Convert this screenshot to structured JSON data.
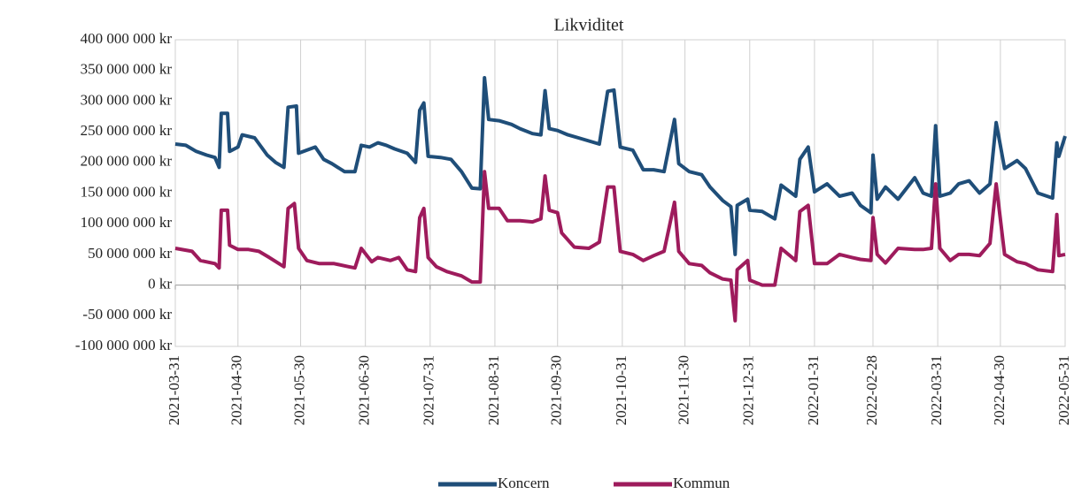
{
  "chart_data": {
    "type": "line",
    "title": "Likviditet",
    "xlim": [
      "2021-03-31",
      "2022-05-31"
    ],
    "xticks": [
      "2021-03-31",
      "2021-04-30",
      "2021-05-30",
      "2021-06-30",
      "2021-07-31",
      "2021-08-31",
      "2021-09-30",
      "2021-10-31",
      "2021-11-30",
      "2021-12-31",
      "2022-01-31",
      "2022-02-28",
      "2022-03-31",
      "2022-04-30",
      "2022-05-31"
    ],
    "ylim": [
      -100000000,
      400000000
    ],
    "yticks": [
      {
        "value": -100000000,
        "label": "-100 000 000 kr"
      },
      {
        "value": -50000000,
        "label": "-50 000 000 kr"
      },
      {
        "value": 0,
        "label": "0 kr"
      },
      {
        "value": 50000000,
        "label": "50 000 000 kr"
      },
      {
        "value": 100000000,
        "label": "100 000 000 kr"
      },
      {
        "value": 150000000,
        "label": "150 000 000 kr"
      },
      {
        "value": 200000000,
        "label": "200 000 000 kr"
      },
      {
        "value": 250000000,
        "label": "250 000 000 kr"
      },
      {
        "value": 300000000,
        "label": "300 000 000 kr"
      },
      {
        "value": 350000000,
        "label": "350 000 000 kr"
      },
      {
        "value": 400000000,
        "label": "400 000 000 kr"
      }
    ],
    "grid": "x",
    "series": [
      {
        "name": "Koncern",
        "color": "#1f4e79",
        "x": [
          "2021-03-31",
          "2021-04-05",
          "2021-04-10",
          "2021-04-15",
          "2021-04-19",
          "2021-04-21",
          "2021-04-22",
          "2021-04-25",
          "2021-04-26",
          "2021-04-30",
          "2021-05-02",
          "2021-05-08",
          "2021-05-14",
          "2021-05-18",
          "2021-05-22",
          "2021-05-24",
          "2021-05-28",
          "2021-05-29",
          "2021-06-02",
          "2021-06-06",
          "2021-06-10",
          "2021-06-14",
          "2021-06-20",
          "2021-06-25",
          "2021-06-28",
          "2021-07-02",
          "2021-07-06",
          "2021-07-10",
          "2021-07-14",
          "2021-07-20",
          "2021-07-24",
          "2021-07-26",
          "2021-07-28",
          "2021-07-30",
          "2021-08-05",
          "2021-08-10",
          "2021-08-15",
          "2021-08-20",
          "2021-08-24",
          "2021-08-26",
          "2021-08-28",
          "2021-09-02",
          "2021-09-08",
          "2021-09-12",
          "2021-09-18",
          "2021-09-22",
          "2021-09-24",
          "2021-09-26",
          "2021-09-30",
          "2021-10-05",
          "2021-10-10",
          "2021-10-15",
          "2021-10-20",
          "2021-10-24",
          "2021-10-27",
          "2021-10-30",
          "2021-11-05",
          "2021-11-10",
          "2021-11-15",
          "2021-11-20",
          "2021-11-25",
          "2021-11-27",
          "2021-12-02",
          "2021-12-08",
          "2021-12-12",
          "2021-12-18",
          "2021-12-22",
          "2021-12-24",
          "2021-12-25",
          "2021-12-30",
          "2021-12-31",
          "2022-01-06",
          "2022-01-12",
          "2022-01-15",
          "2022-01-22",
          "2022-01-24",
          "2022-01-28",
          "2022-01-31",
          "2022-02-06",
          "2022-02-12",
          "2022-02-18",
          "2022-02-22",
          "2022-02-27",
          "2022-02-28",
          "2022-03-02",
          "2022-03-06",
          "2022-03-12",
          "2022-03-20",
          "2022-03-24",
          "2022-03-28",
          "2022-03-30",
          "2022-04-01",
          "2022-04-06",
          "2022-04-10",
          "2022-04-15",
          "2022-04-20",
          "2022-04-25",
          "2022-04-28",
          "2022-05-02",
          "2022-05-08",
          "2022-05-12",
          "2022-05-18",
          "2022-05-25",
          "2022-05-27",
          "2022-05-28",
          "2022-05-31"
        ],
        "values": [
          230000000,
          228000000,
          218000000,
          212000000,
          208000000,
          192000000,
          280000000,
          280000000,
          218000000,
          225000000,
          245000000,
          240000000,
          212000000,
          200000000,
          192000000,
          290000000,
          292000000,
          215000000,
          220000000,
          225000000,
          205000000,
          198000000,
          185000000,
          185000000,
          228000000,
          225000000,
          232000000,
          228000000,
          222000000,
          215000000,
          200000000,
          285000000,
          297000000,
          210000000,
          208000000,
          205000000,
          185000000,
          158000000,
          157000000,
          338000000,
          270000000,
          268000000,
          262000000,
          255000000,
          247000000,
          245000000,
          317000000,
          255000000,
          252000000,
          245000000,
          240000000,
          235000000,
          230000000,
          316000000,
          318000000,
          225000000,
          220000000,
          188000000,
          188000000,
          185000000,
          270000000,
          198000000,
          185000000,
          180000000,
          160000000,
          138000000,
          128000000,
          50000000,
          130000000,
          140000000,
          122000000,
          120000000,
          108000000,
          163000000,
          145000000,
          205000000,
          225000000,
          152000000,
          165000000,
          145000000,
          150000000,
          130000000,
          118000000,
          212000000,
          140000000,
          160000000,
          140000000,
          175000000,
          150000000,
          145000000,
          260000000,
          145000000,
          150000000,
          165000000,
          170000000,
          150000000,
          165000000,
          265000000,
          190000000,
          203000000,
          190000000,
          150000000,
          142000000,
          232000000,
          210000000,
          243000000
        ]
      },
      {
        "name": "Kommun",
        "color": "#9e1b5c",
        "x": [
          "2021-03-31",
          "2021-04-08",
          "2021-04-12",
          "2021-04-19",
          "2021-04-21",
          "2021-04-22",
          "2021-04-25",
          "2021-04-26",
          "2021-04-30",
          "2021-05-05",
          "2021-05-10",
          "2021-05-15",
          "2021-05-22",
          "2021-05-24",
          "2021-05-27",
          "2021-05-29",
          "2021-06-02",
          "2021-06-08",
          "2021-06-15",
          "2021-06-22",
          "2021-06-25",
          "2021-06-28",
          "2021-07-03",
          "2021-07-06",
          "2021-07-12",
          "2021-07-16",
          "2021-07-20",
          "2021-07-24",
          "2021-07-26",
          "2021-07-28",
          "2021-07-30",
          "2021-08-03",
          "2021-08-08",
          "2021-08-15",
          "2021-08-20",
          "2021-08-24",
          "2021-08-26",
          "2021-08-28",
          "2021-09-02",
          "2021-09-06",
          "2021-09-12",
          "2021-09-18",
          "2021-09-22",
          "2021-09-24",
          "2021-09-26",
          "2021-09-30",
          "2021-10-02",
          "2021-10-08",
          "2021-10-15",
          "2021-10-20",
          "2021-10-24",
          "2021-10-27",
          "2021-10-30",
          "2021-11-05",
          "2021-11-10",
          "2021-11-15",
          "2021-11-20",
          "2021-11-25",
          "2021-11-27",
          "2021-12-02",
          "2021-12-08",
          "2021-12-12",
          "2021-12-18",
          "2021-12-22",
          "2021-12-24",
          "2021-12-25",
          "2021-12-30",
          "2021-12-31",
          "2022-01-06",
          "2022-01-12",
          "2022-01-15",
          "2022-01-22",
          "2022-01-24",
          "2022-01-28",
          "2022-01-31",
          "2022-02-06",
          "2022-02-12",
          "2022-02-18",
          "2022-02-22",
          "2022-02-27",
          "2022-02-28",
          "2022-03-02",
          "2022-03-06",
          "2022-03-12",
          "2022-03-20",
          "2022-03-24",
          "2022-03-28",
          "2022-03-30",
          "2022-04-01",
          "2022-04-06",
          "2022-04-10",
          "2022-04-15",
          "2022-04-20",
          "2022-04-25",
          "2022-04-28",
          "2022-05-02",
          "2022-05-08",
          "2022-05-12",
          "2022-05-18",
          "2022-05-25",
          "2022-05-27",
          "2022-05-28",
          "2022-05-31"
        ],
        "values": [
          60000000,
          55000000,
          40000000,
          35000000,
          28000000,
          122000000,
          122000000,
          65000000,
          58000000,
          58000000,
          55000000,
          45000000,
          30000000,
          125000000,
          133000000,
          60000000,
          40000000,
          35000000,
          35000000,
          30000000,
          28000000,
          60000000,
          38000000,
          45000000,
          40000000,
          45000000,
          25000000,
          22000000,
          110000000,
          125000000,
          45000000,
          30000000,
          22000000,
          15000000,
          5000000,
          5000000,
          185000000,
          125000000,
          125000000,
          105000000,
          105000000,
          103000000,
          108000000,
          178000000,
          122000000,
          118000000,
          85000000,
          62000000,
          60000000,
          70000000,
          160000000,
          160000000,
          55000000,
          50000000,
          40000000,
          48000000,
          55000000,
          135000000,
          55000000,
          35000000,
          32000000,
          20000000,
          10000000,
          8000000,
          -58000000,
          25000000,
          40000000,
          8000000,
          0,
          0,
          60000000,
          40000000,
          120000000,
          130000000,
          35000000,
          35000000,
          50000000,
          45000000,
          42000000,
          40000000,
          110000000,
          50000000,
          36000000,
          60000000,
          58000000,
          58000000,
          60000000,
          165000000,
          60000000,
          40000000,
          50000000,
          50000000,
          48000000,
          68000000,
          165000000,
          50000000,
          38000000,
          35000000,
          25000000,
          22000000,
          115000000,
          48000000,
          50000000
        ]
      }
    ]
  }
}
